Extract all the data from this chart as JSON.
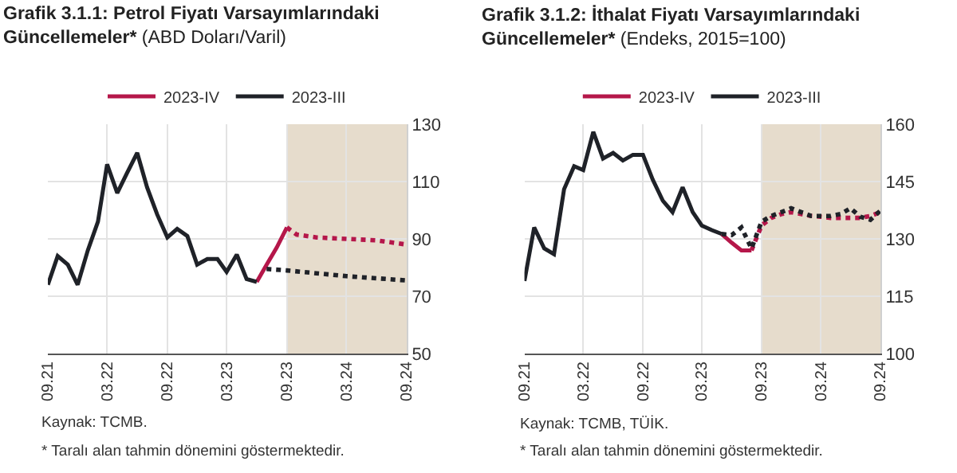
{
  "chart_data": [
    {
      "type": "line",
      "title": "Grafik 3.1.1: Petrol Fiyatı Varsayımlarındaki Güncellemeler*",
      "subtitle": "(ABD Doları/Varil)",
      "xlim": [
        "2021-09",
        "2024-09"
      ],
      "xticks": [
        {
          "value": "2021-09",
          "label": "09.21"
        },
        {
          "value": "2022-03",
          "label": "03.22"
        },
        {
          "value": "2022-09",
          "label": "09.22"
        },
        {
          "value": "2023-03",
          "label": "03.23"
        },
        {
          "value": "2023-09",
          "label": "09.23"
        },
        {
          "value": "2024-03",
          "label": "03.24"
        },
        {
          "value": "2024-09",
          "label": "09.24"
        }
      ],
      "ylim": [
        50,
        130
      ],
      "yticks": [
        50,
        70,
        90,
        110,
        130
      ],
      "grid": true,
      "legend": "top",
      "series": [
        {
          "name": "2023-IV",
          "color": "#b5174a",
          "line_style": "solid",
          "x": [
            "2023-06",
            "2023-07",
            "2023-08",
            "2023-09"
          ],
          "values": [
            75,
            81,
            87,
            94
          ]
        },
        {
          "name": "2023-III",
          "color": "#1f2228",
          "line_style": "solid",
          "x": [
            "2021-09",
            "2021-10",
            "2021-11",
            "2021-12",
            "2022-01",
            "2022-02",
            "2022-03",
            "2022-04",
            "2022-05",
            "2022-06",
            "2022-07",
            "2022-08",
            "2022-09",
            "2022-10",
            "2022-11",
            "2022-12",
            "2023-01",
            "2023-02",
            "2023-03",
            "2023-04",
            "2023-05",
            "2023-06"
          ],
          "values": [
            74,
            84,
            81,
            74,
            86,
            96,
            116,
            106,
            113,
            120,
            108,
            98.5,
            90.5,
            93.5,
            91,
            81,
            83,
            83,
            78.5,
            84.5,
            76,
            75
          ]
        },
        {
          "color": "#b5174a",
          "line_style": "dotted",
          "x": [
            "2023-09",
            "2023-10",
            "2023-12",
            "2024-03",
            "2024-06",
            "2024-09"
          ],
          "values": [
            94,
            91.5,
            90.5,
            90,
            89.5,
            88
          ]
        },
        {
          "color": "#1f2228",
          "line_style": "dotted",
          "x": [
            "2023-07",
            "2023-09",
            "2024-03",
            "2024-09"
          ],
          "values": [
            79.5,
            79,
            77,
            75.5
          ]
        }
      ],
      "bands": [
        {
          "axis": "x",
          "from": "2023-09",
          "to": "2024-09",
          "color": "#e6dccc"
        }
      ],
      "annotations": [
        "Kaynak: TCMB.",
        "* Taralı alan tahmin dönemini göstermektedir."
      ]
    },
    {
      "type": "line",
      "title": "Grafik 3.1.2: İthalat Fiyatı Varsayımlarındaki Güncellemeler*",
      "subtitle": "(Endeks, 2015=100)",
      "xlim": [
        "2021-09",
        "2024-09"
      ],
      "xticks": [
        {
          "value": "2021-09",
          "label": "09.21"
        },
        {
          "value": "2022-03",
          "label": "03.22"
        },
        {
          "value": "2022-09",
          "label": "09.22"
        },
        {
          "value": "2023-03",
          "label": "03.23"
        },
        {
          "value": "2023-09",
          "label": "09.23"
        },
        {
          "value": "2024-03",
          "label": "03.24"
        },
        {
          "value": "2024-09",
          "label": "09.24"
        }
      ],
      "ylim": [
        100,
        160
      ],
      "yticks": [
        100,
        115,
        130,
        145,
        160
      ],
      "grid": true,
      "legend": "top",
      "series": [
        {
          "name": "2023-IV",
          "color": "#b5174a",
          "line_style": "solid",
          "x": [
            "2023-05",
            "2023-06",
            "2023-07",
            "2023-08"
          ],
          "values": [
            131.3,
            129,
            127,
            127
          ]
        },
        {
          "name": "2023-III",
          "color": "#1f2228",
          "line_style": "solid",
          "x": [
            "2021-09",
            "2021-10",
            "2021-11",
            "2021-12",
            "2022-01",
            "2022-02",
            "2022-03",
            "2022-04",
            "2022-05",
            "2022-06",
            "2022-07",
            "2022-08",
            "2022-09",
            "2022-10",
            "2022-11",
            "2022-12",
            "2023-01",
            "2023-02",
            "2023-03",
            "2023-04",
            "2023-05"
          ],
          "values": [
            119,
            133,
            127.5,
            126,
            143,
            149,
            148,
            158,
            151,
            152.5,
            150.5,
            152,
            152,
            145.5,
            140,
            137,
            143.5,
            137,
            133.5,
            132.3,
            131.3
          ]
        },
        {
          "color": "#b5174a",
          "line_style": "dotted",
          "x": [
            "2023-08",
            "2023-09",
            "2023-10",
            "2023-11",
            "2023-12",
            "2024-01",
            "2024-02",
            "2024-03",
            "2024-04",
            "2024-05",
            "2024-06",
            "2024-07",
            "2024-08",
            "2024-09"
          ],
          "values": [
            127,
            133.5,
            135.5,
            136.5,
            137,
            136.5,
            136,
            135.8,
            135.5,
            135.5,
            135.5,
            135.5,
            136,
            137
          ]
        },
        {
          "color": "#1f2228",
          "line_style": "dotted",
          "x": [
            "2023-05",
            "2023-06",
            "2023-07",
            "2023-08",
            "2023-09",
            "2023-10",
            "2023-11",
            "2023-12",
            "2024-01",
            "2024-02",
            "2024-03",
            "2024-04",
            "2024-05",
            "2024-06",
            "2024-07",
            "2024-08",
            "2024-09"
          ],
          "values": [
            131.3,
            131,
            133,
            127.5,
            134.5,
            136,
            137,
            138,
            137,
            136,
            136,
            136,
            136.5,
            138,
            135.8,
            135,
            137.4
          ]
        }
      ],
      "bands": [
        {
          "axis": "x",
          "from": "2023-09",
          "to": "2024-09",
          "color": "#e6dccc"
        }
      ],
      "annotations": [
        "Kaynak: TCMB, TÜİK.",
        "* Taralı alan tahmin dönemini göstermektedir."
      ]
    }
  ]
}
